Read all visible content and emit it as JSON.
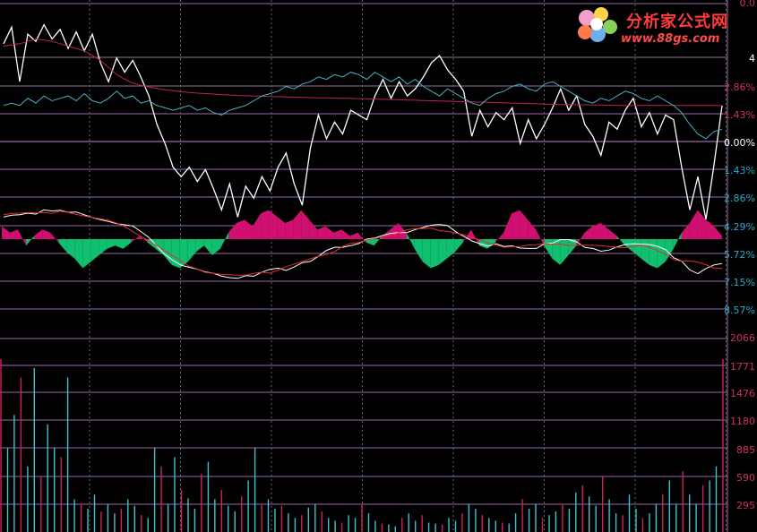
{
  "logo": {
    "title": "分析家公式网",
    "url": "www.88gs.com"
  },
  "price_axis": {
    "labels": [
      "0.0",
      "4",
      "2.86%",
      "1.43%",
      "0.00%",
      "1.43%",
      "2.86%",
      "4.29%",
      "5.72%",
      "7.15%",
      "8.57%"
    ],
    "colors": [
      "#d03060",
      "#ffffff",
      "#d03060",
      "#d03060",
      "#ffffff",
      "#2aa8c8",
      "#2aa8c8",
      "#2aa8c8",
      "#2aa8c8",
      "#2aa8c8",
      "#2aa8c8"
    ]
  },
  "volume_axis": {
    "labels": [
      "2066",
      "1771",
      "1476",
      "1180",
      "885",
      "590",
      "295"
    ]
  },
  "colors": {
    "background": "#000000",
    "grid_horizontal": "#9a6aa8",
    "grid_vertical": "#6a6a6a",
    "price_line": "#ffffff",
    "avg_line": "#c0205a",
    "cyan_line": "#4ab0c8",
    "area_positive": "#d01070",
    "area_negative": "#10c070",
    "volume_up": "#d02060",
    "volume_down": "#40c0d0",
    "axis_text": "#d03060"
  },
  "chart_data": [
    {
      "type": "line",
      "xlabel": "",
      "ylabel": "",
      "ylim": [
        -8.57,
        4.29
      ],
      "series": [
        {
          "values": [
            2.6,
            3.3,
            1.0,
            3.0,
            2.7,
            3.4,
            2.8,
            3.2,
            2.4,
            3.1,
            2.3,
            3.0,
            1.8,
            1.0,
            2.0,
            1.4,
            1.9,
            1.2,
            0.4,
            -0.8,
            -1.6,
            -2.6,
            -3.0,
            -2.6,
            -3.2,
            -2.7,
            -3.5,
            -4.4,
            -3.3,
            -4.7,
            -3.4,
            -3.9,
            -3.0,
            -3.6,
            -2.6,
            -2.0,
            -3.3,
            -4.2,
            -1.8,
            -0.4,
            -1.4,
            -0.7,
            -1.2,
            -0.2,
            -0.4,
            -0.6,
            0.4,
            1.1,
            0.3,
            1.0,
            0.4,
            0.7,
            1.2,
            1.8,
            2.1,
            1.5,
            1.1,
            0.6,
            -1.3,
            -0.2,
            -0.9,
            -0.3,
            -0.6,
            -0.1,
            -1.6,
            -0.6,
            -1.4,
            -0.8,
            -0.1,
            0.7,
            -0.2,
            0.4,
            -0.8,
            -1.3,
            -2.1,
            -0.7,
            -1.0,
            -0.2,
            0.3,
            -0.9,
            -0.3,
            -1.2,
            -0.4,
            -0.6,
            -2.6,
            -4.4,
            -3.0,
            -4.8,
            -2.5,
            0.0
          ]
        },
        {
          "values": [
            2.5,
            2.55,
            2.6,
            2.7,
            2.8,
            2.75,
            2.7,
            2.6,
            2.5,
            2.4,
            2.3,
            2.1,
            1.9,
            1.6,
            1.3,
            1.1,
            0.95,
            0.85,
            0.78,
            0.72,
            0.66,
            0.62,
            0.58,
            0.55,
            0.52,
            0.5,
            0.48,
            0.46,
            0.44,
            0.42,
            0.41,
            0.4,
            0.39,
            0.38,
            0.37,
            0.36,
            0.35,
            0.34,
            0.33,
            0.32,
            0.32,
            0.31,
            0.3,
            0.3,
            0.29,
            0.28,
            0.27,
            0.26,
            0.25,
            0.24,
            0.23,
            0.22,
            0.21,
            0.2,
            0.19,
            0.18,
            0.17,
            0.16,
            0.15,
            0.14,
            0.13,
            0.12,
            0.11,
            0.1,
            0.09,
            0.08,
            0.07,
            0.06,
            0.05,
            0.04,
            0.04,
            0.03,
            0.03,
            0.02,
            0.02,
            0.01,
            0.0,
            0.0,
            0.0,
            0.0,
            0.0,
            0.0,
            0.0,
            0.0,
            0.0,
            0.0,
            0.0,
            0.0,
            0.0,
            0.0
          ]
        },
        {
          "values": [
            0.0,
            0.1,
            0.0,
            0.3,
            0.1,
            0.4,
            0.2,
            0.3,
            0.4,
            0.2,
            0.5,
            0.2,
            0.1,
            0.3,
            0.6,
            0.3,
            0.4,
            0.1,
            0.2,
            0.0,
            -0.1,
            -0.2,
            -0.1,
            0.0,
            -0.2,
            -0.1,
            -0.3,
            -0.4,
            -0.2,
            -0.1,
            0.0,
            0.2,
            0.4,
            0.5,
            0.6,
            0.8,
            0.7,
            0.9,
            1.0,
            1.2,
            1.1,
            1.3,
            1.2,
            1.4,
            1.3,
            1.1,
            1.4,
            1.2,
            1.0,
            1.2,
            0.9,
            1.1,
            0.8,
            0.6,
            0.4,
            0.7,
            0.5,
            0.3,
            0.1,
            0.0,
            0.3,
            0.5,
            0.6,
            0.8,
            0.9,
            0.7,
            0.6,
            0.9,
            1.0,
            0.8,
            0.6,
            0.4,
            0.2,
            0.1,
            0.3,
            0.2,
            0.4,
            0.6,
            0.5,
            0.3,
            0.2,
            0.4,
            0.2,
            0.0,
            -0.3,
            -0.8,
            -1.2,
            -1.4,
            -1.1,
            -1.0
          ]
        }
      ]
    },
    {
      "type": "area",
      "ylim": [
        -1,
        1
      ],
      "series": [
        {
          "values": [
            0.4,
            0.2,
            0.3,
            -0.2,
            0.1,
            0.3,
            0.2,
            -0.1,
            -0.4,
            -0.6,
            -0.9,
            -0.7,
            -0.5,
            -0.3,
            -0.2,
            -0.3,
            -0.1,
            0.1,
            -0.1,
            -0.3,
            -0.5,
            -0.8,
            -0.9,
            -0.7,
            -0.4,
            -0.2,
            -0.5,
            -0.3,
            0.2,
            0.5,
            0.6,
            0.4,
            0.8,
            0.9,
            0.7,
            0.5,
            0.6,
            0.9,
            0.6,
            0.3,
            0.4,
            0.2,
            0.3,
            0.1,
            0.2,
            -0.1,
            -0.2,
            0.1,
            0.3,
            0.5,
            0.2,
            -0.3,
            -0.7,
            -0.9,
            -0.8,
            -0.6,
            -0.4,
            -0.1,
            0.3,
            -0.2,
            -0.3,
            -0.1,
            0.2,
            0.8,
            0.9,
            0.6,
            0.3,
            -0.2,
            -0.6,
            -0.8,
            -0.5,
            -0.2,
            0.2,
            0.4,
            0.5,
            0.3,
            0.1,
            -0.2,
            -0.4,
            -0.6,
            -0.8,
            -0.9,
            -0.7,
            -0.3,
            0.2,
            0.5,
            0.9,
            0.6,
            0.4,
            0.1
          ]
        }
      ]
    },
    {
      "type": "bar",
      "ylim": [
        0,
        2066
      ],
      "series": [
        {
          "values": [
            1850,
            900,
            1250,
            1650,
            700,
            1750,
            600,
            1150,
            900,
            800,
            1650,
            350,
            300,
            250,
            400,
            220,
            300,
            200,
            250,
            350,
            280,
            180,
            150,
            900,
            700,
            300,
            800,
            450,
            360,
            250,
            620,
            750,
            350,
            450,
            280,
            220,
            380,
            550,
            900,
            300,
            350,
            250,
            280,
            200,
            150,
            180,
            260,
            300,
            220,
            150,
            120,
            100,
            180,
            150,
            300,
            200,
            120,
            90,
            80,
            60,
            150,
            200,
            120,
            180,
            100,
            90,
            80,
            150,
            120,
            200,
            300,
            250,
            180,
            150,
            120,
            100,
            90,
            200,
            350,
            250,
            300,
            150,
            180,
            220,
            300,
            250,
            420,
            500,
            380,
            280,
            600,
            350,
            200,
            180,
            400,
            250,
            150,
            200,
            300,
            400,
            550,
            300,
            650,
            400,
            300,
            500,
            550,
            700,
            1850
          ]
        }
      ]
    }
  ]
}
